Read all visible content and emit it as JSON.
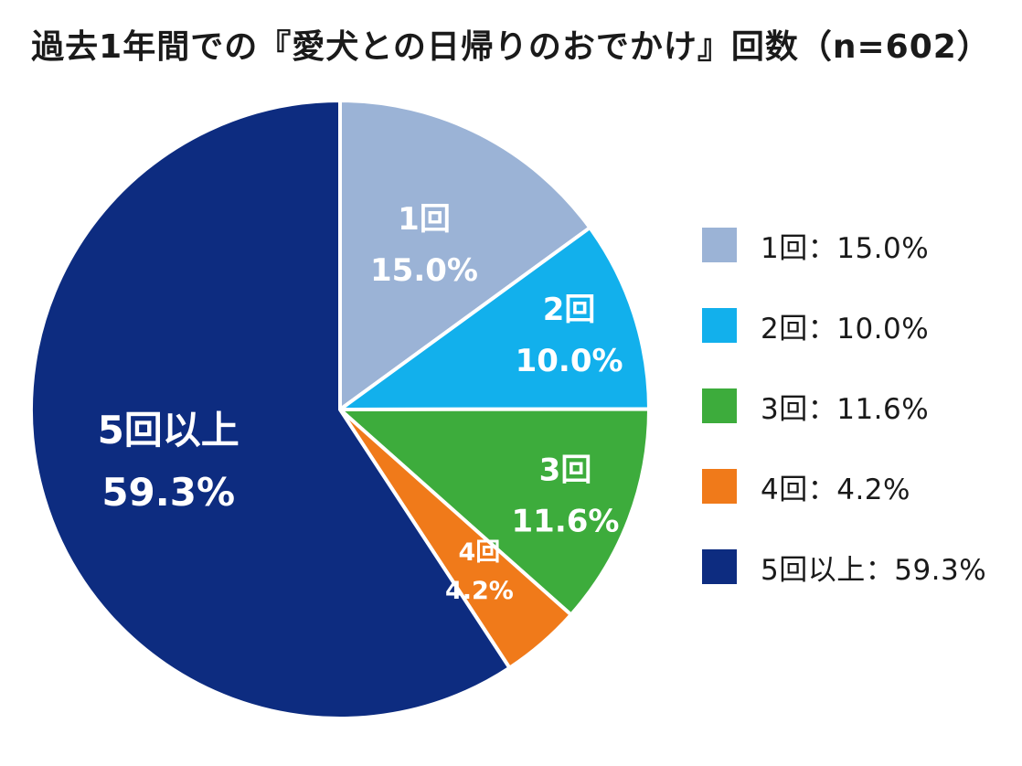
{
  "chart_data": {
    "type": "pie",
    "title": "過去1年間での『愛犬との日帰りのおでかけ』回数（n=602）",
    "unit": "%",
    "legend_position": "right",
    "slices": [
      {
        "label": "1回",
        "value": 15.0,
        "value_text": "15.0%",
        "legend_text": "1回：15.0%",
        "color": "#9bb3d6"
      },
      {
        "label": "2回",
        "value": 10.0,
        "value_text": "10.0%",
        "legend_text": "2回：10.0%",
        "color": "#12b0ec"
      },
      {
        "label": "3回",
        "value": 11.6,
        "value_text": "11.6%",
        "legend_text": "3回：11.6%",
        "color": "#3dac3c"
      },
      {
        "label": "4回",
        "value": 4.2,
        "value_text": "4.2%",
        "legend_text": "4回：4.2%",
        "color": "#f07a1a"
      },
      {
        "label": "5回以上",
        "value": 59.3,
        "value_text": "59.3%",
        "legend_text": "5回以上：59.3%",
        "color": "#0d2c80"
      }
    ]
  }
}
